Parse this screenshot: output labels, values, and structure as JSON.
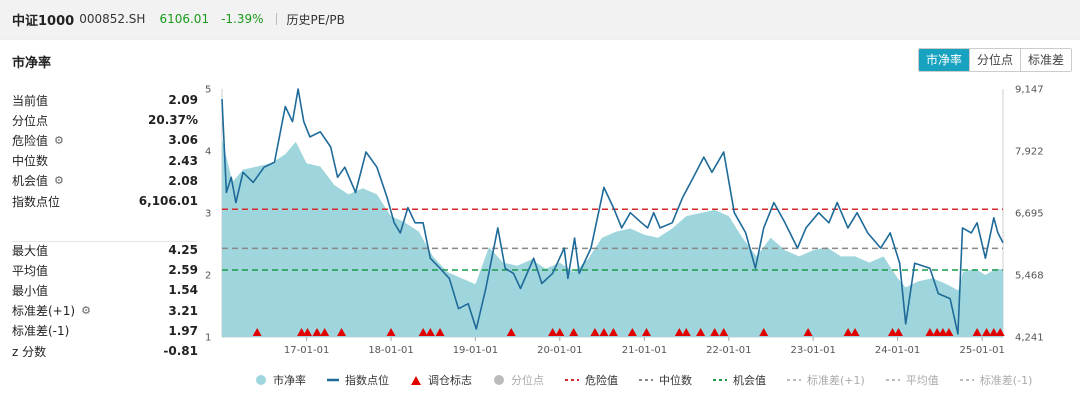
{
  "header": {
    "name": "中证1000",
    "code": "000852.SH",
    "price": "6106.01",
    "change": "-1.39%",
    "page": "历史PE/PB"
  },
  "card": {
    "title": "市净率",
    "tabs": [
      {
        "label": "市净率",
        "active": true
      },
      {
        "label": "分位点",
        "active": false
      },
      {
        "label": "标准差",
        "active": false
      }
    ]
  },
  "stats_top": [
    {
      "label": "当前值",
      "value": "2.09",
      "gear": false
    },
    {
      "label": "分位点",
      "value": "20.37%",
      "gear": false
    },
    {
      "label": "危险值",
      "value": "3.06",
      "gear": true
    },
    {
      "label": "中位数",
      "value": "2.43",
      "gear": false
    },
    {
      "label": "机会值",
      "value": "2.08",
      "gear": true
    },
    {
      "label": "指数点位",
      "value": "6,106.01",
      "gear": false
    }
  ],
  "stats_bottom": [
    {
      "label": "最大值",
      "value": "4.25",
      "gear": false
    },
    {
      "label": "平均值",
      "value": "2.59",
      "gear": false
    },
    {
      "label": "最小值",
      "value": "1.54",
      "gear": false
    },
    {
      "label": "标准差(+1)",
      "value": "3.21",
      "gear": true
    },
    {
      "label": "标准差(-1)",
      "value": "1.97",
      "gear": false
    },
    {
      "label": "z 分数",
      "value": "-0.81",
      "gear": false
    }
  ],
  "colors": {
    "area_fill": "#9fd6dd",
    "index_line": "#1e6a99",
    "danger": "#d42a2a",
    "median": "#888888",
    "opportunity": "#1a9a4a",
    "marker": "#e00000",
    "disabled": "#bbbbbb"
  },
  "chart_data": {
    "type": "area",
    "x_ticks": [
      "17-01-01",
      "18-01-01",
      "19-01-01",
      "20-01-01",
      "21-01-01",
      "22-01-01",
      "23-01-01",
      "24-01-01",
      "25-01-01"
    ],
    "y_left_ticks": [
      "1",
      "2",
      "3",
      "4",
      "5"
    ],
    "y_left_range": [
      1,
      5
    ],
    "y_right_ticks": [
      "4,241",
      "5,468",
      "6,695",
      "7,922",
      "9,147"
    ],
    "y_right_range": [
      4241,
      9147
    ],
    "x_range": [
      "2016-01-01",
      "2025-04-01"
    ],
    "reference_lines": {
      "danger": 3.06,
      "median": 2.43,
      "opportunity": 2.08
    },
    "series": [
      {
        "name": "市净率",
        "axis": "left",
        "points": [
          [
            "2016-01-01",
            4.2
          ],
          [
            "2016-02-15",
            3.5
          ],
          [
            "2016-04-01",
            3.7
          ],
          [
            "2016-06-01",
            3.75
          ],
          [
            "2016-08-01",
            3.8
          ],
          [
            "2016-10-01",
            3.95
          ],
          [
            "2016-11-15",
            4.15
          ],
          [
            "2017-01-01",
            3.8
          ],
          [
            "2017-03-01",
            3.75
          ],
          [
            "2017-05-01",
            3.45
          ],
          [
            "2017-07-01",
            3.3
          ],
          [
            "2017-09-01",
            3.4
          ],
          [
            "2017-11-01",
            3.3
          ],
          [
            "2018-01-01",
            2.95
          ],
          [
            "2018-03-01",
            2.85
          ],
          [
            "2018-05-01",
            2.7
          ],
          [
            "2018-07-01",
            2.3
          ],
          [
            "2018-09-01",
            2.05
          ],
          [
            "2018-11-01",
            1.95
          ],
          [
            "2019-01-01",
            1.85
          ],
          [
            "2019-03-01",
            2.45
          ],
          [
            "2019-05-01",
            2.2
          ],
          [
            "2019-07-01",
            2.15
          ],
          [
            "2019-09-01",
            2.25
          ],
          [
            "2019-11-01",
            2.1
          ],
          [
            "2020-01-01",
            2.2
          ],
          [
            "2020-03-01",
            2.05
          ],
          [
            "2020-05-01",
            2.25
          ],
          [
            "2020-07-01",
            2.6
          ],
          [
            "2020-09-01",
            2.7
          ],
          [
            "2020-11-01",
            2.75
          ],
          [
            "2021-01-01",
            2.65
          ],
          [
            "2021-03-01",
            2.6
          ],
          [
            "2021-05-01",
            2.75
          ],
          [
            "2021-07-01",
            2.95
          ],
          [
            "2021-09-01",
            3.0
          ],
          [
            "2021-11-01",
            3.05
          ],
          [
            "2022-01-01",
            2.95
          ],
          [
            "2022-03-01",
            2.6
          ],
          [
            "2022-05-01",
            2.3
          ],
          [
            "2022-07-01",
            2.6
          ],
          [
            "2022-09-01",
            2.4
          ],
          [
            "2022-11-01",
            2.3
          ],
          [
            "2023-01-01",
            2.4
          ],
          [
            "2023-03-01",
            2.45
          ],
          [
            "2023-05-01",
            2.3
          ],
          [
            "2023-07-01",
            2.3
          ],
          [
            "2023-09-01",
            2.2
          ],
          [
            "2023-11-01",
            2.3
          ],
          [
            "2024-01-01",
            1.95
          ],
          [
            "2024-02-05",
            1.8
          ],
          [
            "2024-04-01",
            1.9
          ],
          [
            "2024-06-01",
            1.95
          ],
          [
            "2024-08-01",
            1.85
          ],
          [
            "2024-09-20",
            1.75
          ],
          [
            "2024-10-10",
            2.05
          ],
          [
            "2024-12-01",
            2.1
          ],
          [
            "2025-01-15",
            2.0
          ],
          [
            "2025-03-01",
            2.1
          ],
          [
            "2025-04-01",
            2.09
          ]
        ]
      },
      {
        "name": "指数点位",
        "axis": "right",
        "points": [
          [
            "2016-01-01",
            8950
          ],
          [
            "2016-01-20",
            7100
          ],
          [
            "2016-02-10",
            7400
          ],
          [
            "2016-03-01",
            6900
          ],
          [
            "2016-04-01",
            7500
          ],
          [
            "2016-05-15",
            7300
          ],
          [
            "2016-07-01",
            7600
          ],
          [
            "2016-08-15",
            7700
          ],
          [
            "2016-10-01",
            8800
          ],
          [
            "2016-11-01",
            8500
          ],
          [
            "2016-11-25",
            9147
          ],
          [
            "2016-12-20",
            8500
          ],
          [
            "2017-01-15",
            8200
          ],
          [
            "2017-03-01",
            8300
          ],
          [
            "2017-04-15",
            8000
          ],
          [
            "2017-05-15",
            7400
          ],
          [
            "2017-06-15",
            7600
          ],
          [
            "2017-08-01",
            7100
          ],
          [
            "2017-09-15",
            7900
          ],
          [
            "2017-11-01",
            7600
          ],
          [
            "2017-12-15",
            7000
          ],
          [
            "2018-01-15",
            6500
          ],
          [
            "2018-02-10",
            6300
          ],
          [
            "2018-03-15",
            6800
          ],
          [
            "2018-04-15",
            6500
          ],
          [
            "2018-05-20",
            6500
          ],
          [
            "2018-06-20",
            5800
          ],
          [
            "2018-08-01",
            5600
          ],
          [
            "2018-09-10",
            5400
          ],
          [
            "2018-10-20",
            4800
          ],
          [
            "2018-12-01",
            4900
          ],
          [
            "2019-01-05",
            4400
          ],
          [
            "2019-02-15",
            5200
          ],
          [
            "2019-04-08",
            6400
          ],
          [
            "2019-05-10",
            5600
          ],
          [
            "2019-06-15",
            5500
          ],
          [
            "2019-07-15",
            5200
          ],
          [
            "2019-09-10",
            5800
          ],
          [
            "2019-10-15",
            5300
          ],
          [
            "2019-12-01",
            5500
          ],
          [
            "2020-01-20",
            6000
          ],
          [
            "2020-02-05",
            5400
          ],
          [
            "2020-03-05",
            6200
          ],
          [
            "2020-03-25",
            5500
          ],
          [
            "2020-05-15",
            6000
          ],
          [
            "2020-07-10",
            7200
          ],
          [
            "2020-08-20",
            6800
          ],
          [
            "2020-09-25",
            6400
          ],
          [
            "2020-11-01",
            6700
          ],
          [
            "2020-12-20",
            6500
          ],
          [
            "2021-01-15",
            6400
          ],
          [
            "2021-02-10",
            6700
          ],
          [
            "2021-03-10",
            6400
          ],
          [
            "2021-05-01",
            6500
          ],
          [
            "2021-06-15",
            7000
          ],
          [
            "2021-08-01",
            7400
          ],
          [
            "2021-09-15",
            7800
          ],
          [
            "2021-10-20",
            7500
          ],
          [
            "2021-12-10",
            7900
          ],
          [
            "2022-01-25",
            6700
          ],
          [
            "2022-03-15",
            6300
          ],
          [
            "2022-04-26",
            5600
          ],
          [
            "2022-06-01",
            6400
          ],
          [
            "2022-07-15",
            6900
          ],
          [
            "2022-09-01",
            6500
          ],
          [
            "2022-10-25",
            6000
          ],
          [
            "2022-12-01",
            6400
          ],
          [
            "2023-01-25",
            6700
          ],
          [
            "2023-03-10",
            6500
          ],
          [
            "2023-04-15",
            6900
          ],
          [
            "2023-05-31",
            6400
          ],
          [
            "2023-07-10",
            6700
          ],
          [
            "2023-08-25",
            6300
          ],
          [
            "2023-10-20",
            6000
          ],
          [
            "2023-11-30",
            6300
          ],
          [
            "2024-01-10",
            5700
          ],
          [
            "2024-02-05",
            4500
          ],
          [
            "2024-03-15",
            5700
          ],
          [
            "2024-05-20",
            5600
          ],
          [
            "2024-06-25",
            5100
          ],
          [
            "2024-08-15",
            5000
          ],
          [
            "2024-09-18",
            4300
          ],
          [
            "2024-10-08",
            6400
          ],
          [
            "2024-11-15",
            6300
          ],
          [
            "2024-12-10",
            6500
          ],
          [
            "2025-01-15",
            5800
          ],
          [
            "2025-02-20",
            6600
          ],
          [
            "2025-03-10",
            6300
          ],
          [
            "2025-04-01",
            6106
          ]
        ]
      }
    ],
    "rebalance_markers": [
      "2016-06-01",
      "2016-12-10",
      "2017-01-05",
      "2017-02-15",
      "2017-03-20",
      "2017-06-01",
      "2018-01-01",
      "2018-05-20",
      "2018-06-20",
      "2018-08-01",
      "2019-06-05",
      "2019-12-01",
      "2020-01-01",
      "2020-03-01",
      "2020-06-01",
      "2020-07-10",
      "2020-08-20",
      "2020-11-10",
      "2021-01-10",
      "2021-06-01",
      "2021-07-01",
      "2021-09-01",
      "2021-11-01",
      "2021-12-10",
      "2022-06-01",
      "2022-12-10",
      "2023-06-01",
      "2023-07-01",
      "2023-12-10",
      "2024-01-05",
      "2024-05-20",
      "2024-06-20",
      "2024-07-15",
      "2024-08-10",
      "2024-12-10",
      "2025-01-20",
      "2025-02-20",
      "2025-03-20"
    ]
  },
  "legend": [
    {
      "label": "市净率",
      "kind": "dot",
      "color": "#9fd6dd",
      "off": false
    },
    {
      "label": "指数点位",
      "kind": "line",
      "color": "#1e6a99",
      "off": false
    },
    {
      "label": "调仓标志",
      "kind": "triangle",
      "color": "#e00000",
      "off": false
    },
    {
      "label": "分位点",
      "kind": "dot",
      "color": "#bbbbbb",
      "off": true
    },
    {
      "label": "危险值",
      "kind": "dash",
      "color": "#d42a2a",
      "off": false
    },
    {
      "label": "中位数",
      "kind": "dash",
      "color": "#888888",
      "off": false
    },
    {
      "label": "机会值",
      "kind": "dash",
      "color": "#1a9a4a",
      "off": false
    },
    {
      "label": "标准差(+1)",
      "kind": "dash",
      "color": "#bbbbbb",
      "off": true
    },
    {
      "label": "平均值",
      "kind": "dash",
      "color": "#bbbbbb",
      "off": true
    },
    {
      "label": "标准差(-1)",
      "kind": "dash",
      "color": "#bbbbbb",
      "off": true
    }
  ]
}
